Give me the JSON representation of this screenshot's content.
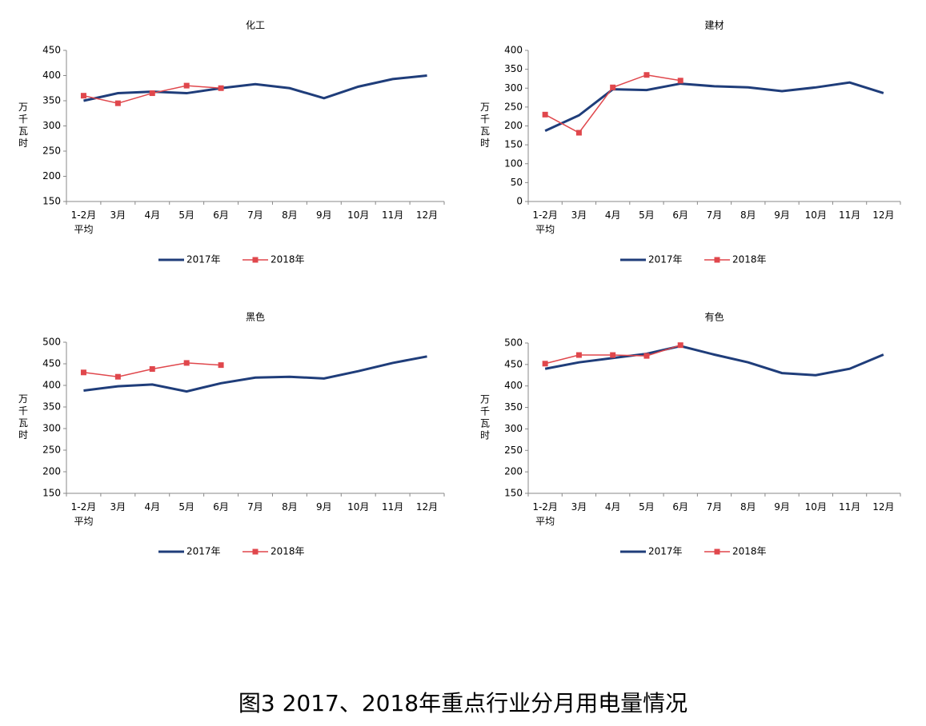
{
  "caption": "图3 2017、2018年重点行业分月用电量情况",
  "chart_data": [
    {
      "type": "line",
      "title": "化工",
      "ylabel": "万千瓦时",
      "categories": [
        "1-2月\n平均",
        "3月",
        "4月",
        "5月",
        "6月",
        "7月",
        "8月",
        "9月",
        "10月",
        "11月",
        "12月"
      ],
      "ylim": [
        150,
        450
      ],
      "yticks": [
        150,
        200,
        250,
        300,
        350,
        400,
        450
      ],
      "series": [
        {
          "name": "2017年",
          "color": "#1f3d7a",
          "values": [
            350,
            365,
            368,
            365,
            375,
            383,
            375,
            355,
            378,
            393,
            400
          ]
        },
        {
          "name": "2018年",
          "color": "#e0474c",
          "values": [
            360,
            345,
            365,
            380,
            375,
            null,
            null,
            null,
            null,
            null,
            null
          ]
        }
      ]
    },
    {
      "type": "line",
      "title": "建材",
      "ylabel": "万千瓦时",
      "categories": [
        "1-2月\n平均",
        "3月",
        "4月",
        "5月",
        "6月",
        "7月",
        "8月",
        "9月",
        "10月",
        "11月",
        "12月"
      ],
      "ylim": [
        0,
        400
      ],
      "yticks": [
        0,
        50,
        100,
        150,
        200,
        250,
        300,
        350,
        400
      ],
      "series": [
        {
          "name": "2017年",
          "color": "#1f3d7a",
          "values": [
            187,
            228,
            297,
            295,
            312,
            305,
            302,
            292,
            302,
            315,
            287
          ]
        },
        {
          "name": "2018年",
          "color": "#e0474c",
          "values": [
            230,
            182,
            302,
            335,
            320,
            null,
            null,
            null,
            null,
            null,
            null
          ]
        }
      ]
    },
    {
      "type": "line",
      "title": "黑色",
      "ylabel": "万千瓦时",
      "categories": [
        "1-2月\n平均",
        "3月",
        "4月",
        "5月",
        "6月",
        "7月",
        "8月",
        "9月",
        "10月",
        "11月",
        "12月"
      ],
      "ylim": [
        150,
        500
      ],
      "yticks": [
        150,
        200,
        250,
        300,
        350,
        400,
        450,
        500
      ],
      "series": [
        {
          "name": "2017年",
          "color": "#1f3d7a",
          "values": [
            388,
            398,
            402,
            386,
            405,
            418,
            420,
            416,
            433,
            452,
            467
          ]
        },
        {
          "name": "2018年",
          "color": "#e0474c",
          "values": [
            430,
            420,
            438,
            452,
            447,
            null,
            null,
            null,
            null,
            null,
            null
          ]
        }
      ]
    },
    {
      "type": "line",
      "title": "有色",
      "ylabel": "万千瓦时",
      "categories": [
        "1-2月\n平均",
        "3月",
        "4月",
        "5月",
        "6月",
        "7月",
        "8月",
        "9月",
        "10月",
        "11月",
        "12月"
      ],
      "ylim": [
        150,
        500
      ],
      "yticks": [
        150,
        200,
        250,
        300,
        350,
        400,
        450,
        500
      ],
      "series": [
        {
          "name": "2017年",
          "color": "#1f3d7a",
          "values": [
            440,
            455,
            465,
            475,
            493,
            473,
            455,
            430,
            425,
            440,
            473
          ]
        },
        {
          "name": "2018年",
          "color": "#e0474c",
          "values": [
            452,
            472,
            472,
            470,
            495,
            null,
            null,
            null,
            null,
            null,
            null
          ]
        }
      ]
    }
  ]
}
